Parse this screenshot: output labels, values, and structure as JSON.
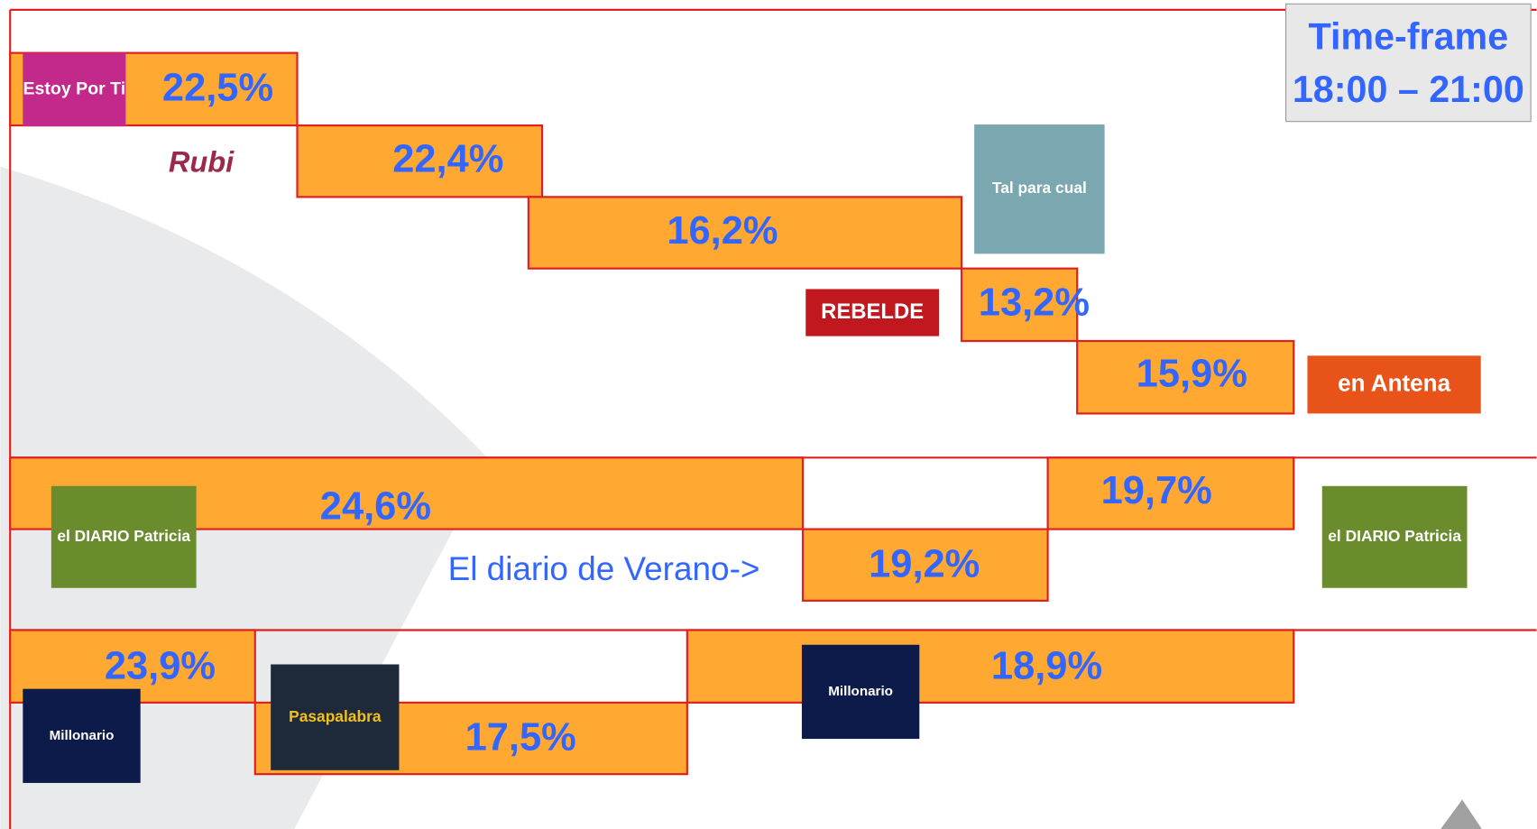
{
  "time_frame": {
    "title": "Time-frame",
    "range": "18:00 – 21:00"
  },
  "shares": [
    "22,5%",
    "22,4%",
    "16,2%",
    "13,2%",
    "15,9%",
    "24,6%",
    "19,2%",
    "19,7%",
    "23,9%",
    "17,5%",
    "18,9%"
  ],
  "note": "El diario de Verano->",
  "logos": [
    "Estoy Por Ti",
    "Rubi",
    "Tal para cual",
    "REBELDE",
    "en Antena",
    "el DIARIO Patricia",
    "el DIARIO Patricia",
    "Millonario",
    "Pasapalabra",
    "Millonario"
  ]
}
